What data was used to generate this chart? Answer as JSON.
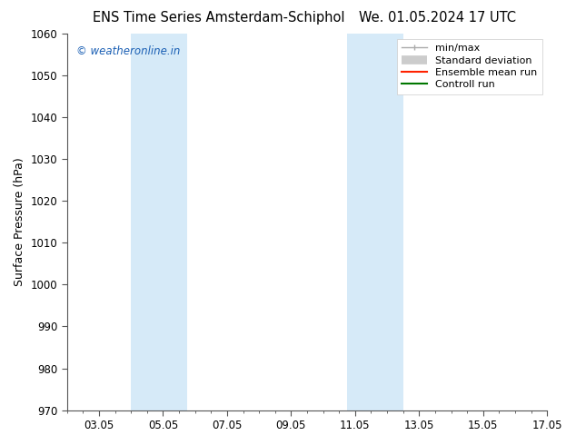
{
  "title_left": "ENS Time Series Amsterdam-Schiphol",
  "title_right": "We. 01.05.2024 17 UTC",
  "ylabel": "Surface Pressure (hPa)",
  "ylim": [
    970,
    1060
  ],
  "yticks": [
    970,
    980,
    990,
    1000,
    1010,
    1020,
    1030,
    1040,
    1050,
    1060
  ],
  "xlim": [
    2.0,
    17.0
  ],
  "xtick_labels": [
    "03.05",
    "05.05",
    "07.05",
    "09.05",
    "11.05",
    "13.05",
    "15.05",
    "17.05"
  ],
  "xtick_positions": [
    3.0,
    5.0,
    7.0,
    9.0,
    11.0,
    13.0,
    15.0,
    17.0
  ],
  "shaded_regions": [
    {
      "xmin": 4.0,
      "xmax": 5.75,
      "color": "#d6eaf8"
    },
    {
      "xmin": 10.75,
      "xmax": 12.5,
      "color": "#d6eaf8"
    }
  ],
  "watermark": "© weatheronline.in",
  "watermark_color": "#1a5fb4",
  "bg_color": "#ffffff",
  "plot_bg_color": "#ffffff",
  "title_fontsize": 10.5,
  "tick_fontsize": 8.5,
  "label_fontsize": 9,
  "legend_fontsize": 8
}
